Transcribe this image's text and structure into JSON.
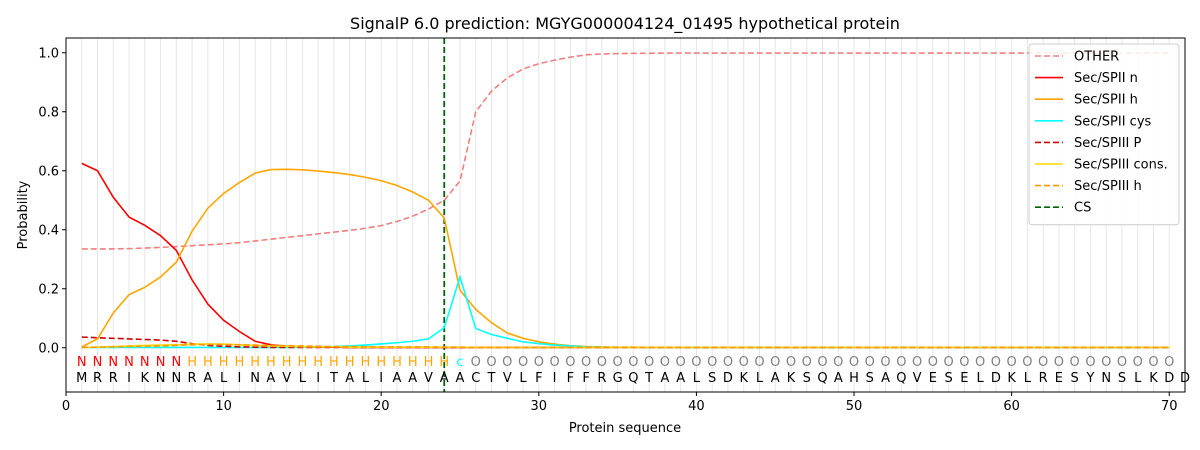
{
  "chart_data": {
    "type": "line",
    "title": "SignalP 6.0 prediction: MGYG000004124_01495 hypothetical protein",
    "xlabel": "Protein sequence",
    "ylabel": "Probability",
    "xlim": [
      0,
      71
    ],
    "ylim": [
      -0.15,
      1.05
    ],
    "x_ticks": [
      0,
      10,
      20,
      30,
      40,
      50,
      60,
      70
    ],
    "y_ticks": [
      0.0,
      0.2,
      0.4,
      0.6,
      0.8,
      1.0
    ],
    "x_tick_labels": [
      "0",
      "10",
      "20",
      "30",
      "40",
      "50",
      "60",
      "70"
    ],
    "y_tick_labels": [
      "0.0",
      "0.2",
      "0.4",
      "0.6",
      "0.8",
      "1.0"
    ],
    "grid": "vertical lines at each residue",
    "legend_position": "top-right",
    "sequence": "MRRIKNNRALINAVLITALIAAVAACTVLFIFFRGQTAALSDKLAKSQAHSAQVESELDKLRESYNSLKDD",
    "annotation": "NNNNNNNHHHHHHHHHHHHHHHHHCOOOOOOOOOOOOOOOOOOOOOOOOOOOOOOOOOOOOOOOOOOOOO",
    "annotation_colors": {
      "N": "#ff0000",
      "H": "#ffa500",
      "C": "#00ffff",
      "O": "#808080"
    },
    "cleavage_site": 24,
    "series": [
      {
        "name": "OTHER",
        "color": "#f08080",
        "dash": "dashed",
        "values": [
          0.335,
          0.335,
          0.335,
          0.336,
          0.338,
          0.34,
          0.343,
          0.346,
          0.349,
          0.352,
          0.356,
          0.362,
          0.368,
          0.374,
          0.38,
          0.386,
          0.392,
          0.398,
          0.405,
          0.414,
          0.428,
          0.446,
          0.47,
          0.5,
          0.565,
          0.8,
          0.87,
          0.915,
          0.945,
          0.963,
          0.975,
          0.985,
          0.993,
          0.996,
          0.997,
          0.998,
          0.998,
          0.999,
          0.999,
          0.999,
          0.999,
          0.999,
          0.999,
          0.999,
          0.999,
          0.999,
          0.999,
          0.999,
          0.999,
          0.999,
          0.999,
          0.999,
          0.999,
          0.999,
          0.999,
          0.999,
          0.999,
          0.999,
          0.999,
          0.999,
          0.999,
          0.999,
          0.999,
          0.999,
          0.999,
          0.999,
          0.999,
          0.999,
          0.999,
          0.999
        ]
      },
      {
        "name": "Sec/SPII n",
        "color": "#ff0000",
        "dash": "solid",
        "values": [
          0.625,
          0.6,
          0.51,
          0.443,
          0.415,
          0.38,
          0.33,
          0.23,
          0.148,
          0.093,
          0.055,
          0.022,
          0.01,
          0.005,
          0.003,
          0.002,
          0.002,
          0.001,
          0.001,
          0.001,
          0.001,
          0.001,
          0.001,
          0.001,
          0.001,
          0.001,
          0.001,
          0.001,
          0.001,
          0.001,
          0.001,
          0.001,
          0.001,
          0.001,
          0.001,
          0.001,
          0.001,
          0.001,
          0.001,
          0.001,
          0.001,
          0.001,
          0.001,
          0.001,
          0.001,
          0.001,
          0.001,
          0.001,
          0.001,
          0.001,
          0.001,
          0.001,
          0.001,
          0.001,
          0.001,
          0.001,
          0.001,
          0.001,
          0.001,
          0.001,
          0.001,
          0.001,
          0.001,
          0.001,
          0.001,
          0.001,
          0.001,
          0.001,
          0.001,
          0.001
        ]
      },
      {
        "name": "Sec/SPII h",
        "color": "#ffa500",
        "dash": "solid",
        "values": [
          0.003,
          0.03,
          0.118,
          0.18,
          0.205,
          0.24,
          0.29,
          0.395,
          0.473,
          0.523,
          0.56,
          0.592,
          0.604,
          0.605,
          0.603,
          0.599,
          0.594,
          0.587,
          0.578,
          0.566,
          0.55,
          0.528,
          0.5,
          0.44,
          0.195,
          0.13,
          0.085,
          0.05,
          0.032,
          0.02,
          0.012,
          0.007,
          0.004,
          0.003,
          0.002,
          0.002,
          0.001,
          0.001,
          0.001,
          0.001,
          0.001,
          0.001,
          0.001,
          0.001,
          0.001,
          0.001,
          0.001,
          0.001,
          0.001,
          0.001,
          0.001,
          0.001,
          0.001,
          0.001,
          0.001,
          0.001,
          0.001,
          0.001,
          0.001,
          0.001,
          0.001,
          0.001,
          0.001,
          0.001,
          0.001,
          0.001,
          0.001,
          0.001,
          0.001,
          0.001
        ]
      },
      {
        "name": "Sec/SPII cys",
        "color": "#00ffff",
        "dash": "solid",
        "values": [
          0.001,
          0.001,
          0.001,
          0.001,
          0.001,
          0.001,
          0.001,
          0.001,
          0.001,
          0.001,
          0.001,
          0.001,
          0.001,
          0.001,
          0.002,
          0.003,
          0.004,
          0.006,
          0.009,
          0.013,
          0.017,
          0.022,
          0.03,
          0.068,
          0.24,
          0.065,
          0.045,
          0.032,
          0.02,
          0.014,
          0.009,
          0.006,
          0.003,
          0.002,
          0.001,
          0.001,
          0.001,
          0.001,
          0.001,
          0.001,
          0.001,
          0.001,
          0.001,
          0.001,
          0.001,
          0.001,
          0.001,
          0.001,
          0.001,
          0.001,
          0.001,
          0.001,
          0.001,
          0.001,
          0.001,
          0.001,
          0.001,
          0.001,
          0.001,
          0.001,
          0.001,
          0.001,
          0.001,
          0.001,
          0.001,
          0.001,
          0.001,
          0.001,
          0.001,
          0.001
        ]
      },
      {
        "name": "Sec/SPIII P",
        "color": "#cc0000",
        "dash": "dashed",
        "values": [
          0.036,
          0.034,
          0.032,
          0.03,
          0.028,
          0.026,
          0.022,
          0.014,
          0.008,
          0.005,
          0.003,
          0.002,
          0.001,
          0.001,
          0.001,
          0.001,
          0.001,
          0.001,
          0.001,
          0.001,
          0.001,
          0.001,
          0.001,
          0.001,
          0.001,
          0.001,
          0.001,
          0.001,
          0.001,
          0.001,
          0.001,
          0.001,
          0.001,
          0.001,
          0.001,
          0.001,
          0.001,
          0.001,
          0.001,
          0.001,
          0.001,
          0.001,
          0.001,
          0.001,
          0.001,
          0.001,
          0.001,
          0.001,
          0.001,
          0.001,
          0.001,
          0.001,
          0.001,
          0.001,
          0.001,
          0.001,
          0.001,
          0.001,
          0.001,
          0.001,
          0.001,
          0.001,
          0.001,
          0.001,
          0.001,
          0.001,
          0.001,
          0.001,
          0.001,
          0.001
        ]
      },
      {
        "name": "Sec/SPIII cons.",
        "color": "#ffd700",
        "dash": "solid",
        "values": [
          0.001,
          0.002,
          0.004,
          0.006,
          0.008,
          0.009,
          0.01,
          0.012,
          0.013,
          0.012,
          0.01,
          0.008,
          0.006,
          0.005,
          0.004,
          0.003,
          0.003,
          0.002,
          0.002,
          0.002,
          0.002,
          0.002,
          0.002,
          0.002,
          0.002,
          0.001,
          0.001,
          0.001,
          0.001,
          0.001,
          0.001,
          0.001,
          0.001,
          0.001,
          0.001,
          0.001,
          0.001,
          0.001,
          0.001,
          0.001,
          0.001,
          0.001,
          0.001,
          0.001,
          0.001,
          0.001,
          0.001,
          0.001,
          0.001,
          0.001,
          0.001,
          0.001,
          0.001,
          0.001,
          0.001,
          0.001,
          0.001,
          0.001,
          0.001,
          0.001,
          0.001,
          0.001,
          0.001,
          0.001,
          0.001,
          0.001,
          0.001,
          0.001,
          0.001,
          0.001
        ]
      },
      {
        "name": "Sec/SPIII h",
        "color": "#ff9900",
        "dash": "dashed",
        "values": [
          0.001,
          0.002,
          0.003,
          0.004,
          0.005,
          0.006,
          0.008,
          0.01,
          0.011,
          0.011,
          0.01,
          0.009,
          0.008,
          0.007,
          0.006,
          0.005,
          0.004,
          0.004,
          0.003,
          0.003,
          0.003,
          0.003,
          0.003,
          0.002,
          0.002,
          0.001,
          0.001,
          0.001,
          0.001,
          0.001,
          0.001,
          0.001,
          0.001,
          0.001,
          0.001,
          0.001,
          0.001,
          0.001,
          0.001,
          0.001,
          0.001,
          0.001,
          0.001,
          0.001,
          0.001,
          0.001,
          0.001,
          0.001,
          0.001,
          0.001,
          0.001,
          0.001,
          0.001,
          0.001,
          0.001,
          0.001,
          0.001,
          0.001,
          0.001,
          0.001,
          0.001,
          0.001,
          0.001,
          0.001,
          0.001,
          0.001,
          0.001,
          0.001,
          0.001,
          0.001
        ]
      }
    ],
    "cs_legend": {
      "name": "CS",
      "color": "#006400",
      "dash": "dashed"
    }
  }
}
